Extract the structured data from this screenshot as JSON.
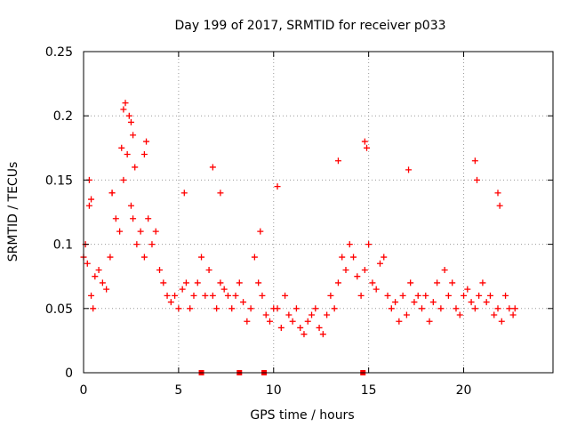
{
  "chart_data": {
    "type": "scatter",
    "title": "Day 199 of 2017, SRMTID for receiver p033",
    "xlabel": "GPS time / hours",
    "ylabel": "SRMTID / TECUs",
    "xlim": [
      0,
      24.7
    ],
    "ylim": [
      0,
      0.25
    ],
    "xticks": [
      {
        "value": 0,
        "label": "0"
      },
      {
        "value": 5,
        "label": "5"
      },
      {
        "value": 10,
        "label": "10"
      },
      {
        "value": 15,
        "label": "15"
      },
      {
        "value": 20,
        "label": "20"
      }
    ],
    "yticks": [
      {
        "value": 0,
        "label": "0"
      },
      {
        "value": 0.05,
        "label": "0.05"
      },
      {
        "value": 0.1,
        "label": "0.1"
      },
      {
        "value": 0.15,
        "label": "0.15"
      },
      {
        "value": 0.2,
        "label": "0.2"
      },
      {
        "value": 0.25,
        "label": "0.25"
      }
    ],
    "grid": true,
    "color": "#ff0000",
    "series": [
      {
        "name": "SRMTID",
        "marker": "plus",
        "x": [
          0.0,
          0.1,
          0.2,
          0.3,
          0.4,
          0.5,
          0.6,
          0.8,
          1.0,
          1.2,
          1.4,
          1.5,
          1.7,
          1.9,
          2.1,
          2.3,
          2.5,
          2.6,
          2.8,
          3.0,
          3.2,
          3.4,
          3.6,
          3.8,
          4.0,
          4.2,
          4.4,
          4.6,
          4.8,
          5.0,
          5.2,
          5.4,
          5.6,
          5.8,
          6.0,
          6.2,
          6.4,
          6.6,
          6.8,
          7.0,
          7.2,
          7.4,
          7.6,
          7.8,
          8.0,
          8.2,
          8.4,
          8.6,
          8.8,
          9.0,
          9.2,
          9.4,
          9.6,
          9.8,
          10.0,
          10.2,
          10.4,
          10.6,
          10.8,
          11.0,
          11.2,
          11.4,
          11.6,
          11.8,
          12.0,
          12.2,
          12.4,
          12.6,
          12.8,
          13.0,
          13.2,
          13.4,
          13.6,
          13.8,
          14.0,
          14.2,
          14.4,
          14.6,
          14.8,
          15.0,
          15.2,
          15.4,
          15.6,
          15.8,
          16.0,
          16.2,
          16.4,
          16.6,
          16.8,
          17.0,
          17.2,
          17.4,
          17.6,
          17.8,
          18.0,
          18.2,
          18.4,
          18.6,
          18.8,
          19.0,
          19.2,
          19.4,
          19.6,
          19.8,
          20.0,
          20.2,
          20.4,
          20.6,
          20.8,
          21.0,
          21.2,
          21.4,
          21.6,
          21.8,
          22.0,
          22.2,
          22.4,
          22.6,
          22.7,
          0.3,
          0.4,
          1.5,
          2.0,
          2.1,
          2.2,
          2.4,
          2.5,
          2.6,
          2.7,
          3.2,
          3.3,
          5.3,
          6.8,
          7.2,
          9.3,
          10.2,
          13.4,
          14.8,
          14.9,
          17.1,
          20.6,
          20.7,
          21.8,
          21.9,
          6.2,
          8.2,
          9.5,
          14.7
        ],
        "y": [
          0.09,
          0.1,
          0.085,
          0.13,
          0.06,
          0.05,
          0.075,
          0.08,
          0.07,
          0.065,
          0.09,
          0.14,
          0.12,
          0.11,
          0.15,
          0.17,
          0.13,
          0.12,
          0.1,
          0.11,
          0.09,
          0.12,
          0.1,
          0.11,
          0.08,
          0.07,
          0.06,
          0.055,
          0.06,
          0.05,
          0.065,
          0.07,
          0.05,
          0.06,
          0.07,
          0.09,
          0.06,
          0.08,
          0.06,
          0.05,
          0.07,
          0.065,
          0.06,
          0.05,
          0.06,
          0.07,
          0.055,
          0.04,
          0.05,
          0.09,
          0.07,
          0.06,
          0.045,
          0.04,
          0.05,
          0.05,
          0.035,
          0.06,
          0.045,
          0.04,
          0.05,
          0.035,
          0.03,
          0.04,
          0.045,
          0.05,
          0.035,
          0.03,
          0.045,
          0.06,
          0.05,
          0.07,
          0.09,
          0.08,
          0.1,
          0.09,
          0.075,
          0.06,
          0.08,
          0.1,
          0.07,
          0.065,
          0.085,
          0.09,
          0.06,
          0.05,
          0.055,
          0.04,
          0.06,
          0.045,
          0.07,
          0.055,
          0.06,
          0.05,
          0.06,
          0.04,
          0.055,
          0.07,
          0.05,
          0.08,
          0.06,
          0.07,
          0.05,
          0.045,
          0.06,
          0.065,
          0.055,
          0.05,
          0.06,
          0.07,
          0.055,
          0.06,
          0.045,
          0.05,
          0.04,
          0.06,
          0.05,
          0.045,
          0.05,
          0.15,
          0.135,
          0.14,
          0.175,
          0.205,
          0.21,
          0.2,
          0.195,
          0.185,
          0.16,
          0.17,
          0.18,
          0.14,
          0.16,
          0.14,
          0.11,
          0.145,
          0.165,
          0.18,
          0.175,
          0.158,
          0.165,
          0.15,
          0.14,
          0.13,
          0.0,
          0.0,
          0.0,
          0.0
        ]
      }
    ]
  }
}
